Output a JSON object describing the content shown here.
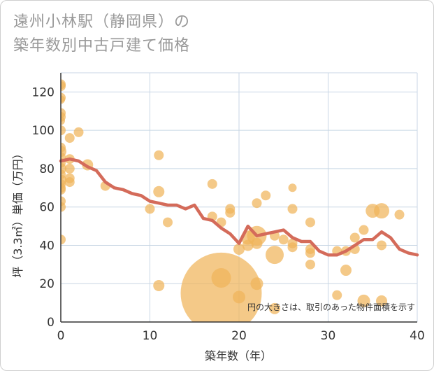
{
  "title_line1": "遠州小林駅（静岡県）の",
  "title_line2": "築年数別中古戸建て価格",
  "colors": {
    "bubble": "#f0b45a",
    "line": "#d46b5a",
    "grid": "#c8d6e4",
    "axis": "#333333"
  },
  "chart_data": {
    "type": "scatter",
    "xlabel": "築年数（年）",
    "ylabel": "坪（3.3㎡）単価（万円）",
    "xlim": [
      0,
      40
    ],
    "ylim": [
      0,
      130
    ],
    "xticks": [
      0,
      10,
      20,
      30,
      40
    ],
    "yticks": [
      0,
      20,
      40,
      60,
      80,
      100,
      120
    ],
    "grid": true,
    "note": "円の大きさは、取引のあった物件面積を示す",
    "bubbles": [
      {
        "x": 0,
        "y": 124,
        "s": 7
      },
      {
        "x": 0,
        "y": 123,
        "s": 7
      },
      {
        "x": 0,
        "y": 117,
        "s": 7
      },
      {
        "x": 0,
        "y": 116,
        "s": 6
      },
      {
        "x": 0,
        "y": 109,
        "s": 7
      },
      {
        "x": 0,
        "y": 107,
        "s": 7
      },
      {
        "x": 0,
        "y": 105,
        "s": 6
      },
      {
        "x": 0,
        "y": 100,
        "s": 7
      },
      {
        "x": 0,
        "y": 91,
        "s": 7
      },
      {
        "x": 0,
        "y": 89,
        "s": 8
      },
      {
        "x": 0,
        "y": 86,
        "s": 7
      },
      {
        "x": 0,
        "y": 83,
        "s": 7
      },
      {
        "x": 0,
        "y": 80,
        "s": 8
      },
      {
        "x": 0,
        "y": 77,
        "s": 7
      },
      {
        "x": 0,
        "y": 74,
        "s": 8
      },
      {
        "x": 0,
        "y": 72,
        "s": 7
      },
      {
        "x": 0,
        "y": 70,
        "s": 7
      },
      {
        "x": 0,
        "y": 69,
        "s": 7
      },
      {
        "x": 0,
        "y": 63,
        "s": 7
      },
      {
        "x": 0,
        "y": 60,
        "s": 7
      },
      {
        "x": 0,
        "y": 43,
        "s": 7
      },
      {
        "x": 1,
        "y": 96,
        "s": 7
      },
      {
        "x": 1,
        "y": 85,
        "s": 7
      },
      {
        "x": 1,
        "y": 80,
        "s": 7
      },
      {
        "x": 1,
        "y": 75,
        "s": 7
      },
      {
        "x": 1,
        "y": 73,
        "s": 7
      },
      {
        "x": 2,
        "y": 99,
        "s": 7
      },
      {
        "x": 3,
        "y": 82,
        "s": 8
      },
      {
        "x": 5,
        "y": 71,
        "s": 7
      },
      {
        "x": 10,
        "y": 59,
        "s": 7
      },
      {
        "x": 11,
        "y": 87,
        "s": 7
      },
      {
        "x": 11,
        "y": 68,
        "s": 8
      },
      {
        "x": 11,
        "y": 19,
        "s": 8
      },
      {
        "x": 12,
        "y": 52,
        "s": 7
      },
      {
        "x": 17,
        "y": 72,
        "s": 7
      },
      {
        "x": 17,
        "y": 55,
        "s": 7
      },
      {
        "x": 18,
        "y": 52,
        "s": 7
      },
      {
        "x": 18,
        "y": 15,
        "s": 58
      },
      {
        "x": 18,
        "y": 23,
        "s": 14
      },
      {
        "x": 19,
        "y": 59,
        "s": 7
      },
      {
        "x": 19,
        "y": 57,
        "s": 7
      },
      {
        "x": 20,
        "y": 38,
        "s": 8
      },
      {
        "x": 20,
        "y": 13,
        "s": 9
      },
      {
        "x": 21,
        "y": 44,
        "s": 10
      },
      {
        "x": 21,
        "y": 40,
        "s": 8
      },
      {
        "x": 22,
        "y": 62,
        "s": 7
      },
      {
        "x": 22,
        "y": 45,
        "s": 14
      },
      {
        "x": 22,
        "y": 41,
        "s": 8
      },
      {
        "x": 22,
        "y": 20,
        "s": 9
      },
      {
        "x": 23,
        "y": 66,
        "s": 7
      },
      {
        "x": 24,
        "y": 45,
        "s": 7
      },
      {
        "x": 24,
        "y": 35,
        "s": 13
      },
      {
        "x": 24,
        "y": 7,
        "s": 8
      },
      {
        "x": 25,
        "y": 43,
        "s": 7
      },
      {
        "x": 26,
        "y": 70,
        "s": 6
      },
      {
        "x": 26,
        "y": 59,
        "s": 7
      },
      {
        "x": 26,
        "y": 41,
        "s": 7
      },
      {
        "x": 26,
        "y": 39,
        "s": 7
      },
      {
        "x": 28,
        "y": 52,
        "s": 7
      },
      {
        "x": 28,
        "y": 38,
        "s": 7
      },
      {
        "x": 28,
        "y": 36,
        "s": 7
      },
      {
        "x": 28,
        "y": 30,
        "s": 7
      },
      {
        "x": 31,
        "y": 37,
        "s": 7
      },
      {
        "x": 31,
        "y": 14,
        "s": 7
      },
      {
        "x": 32,
        "y": 37,
        "s": 7
      },
      {
        "x": 32,
        "y": 27,
        "s": 8
      },
      {
        "x": 33,
        "y": 44,
        "s": 7
      },
      {
        "x": 33,
        "y": 38,
        "s": 7
      },
      {
        "x": 34,
        "y": 48,
        "s": 7
      },
      {
        "x": 34,
        "y": 11,
        "s": 9
      },
      {
        "x": 35,
        "y": 58,
        "s": 10
      },
      {
        "x": 36,
        "y": 58,
        "s": 11
      },
      {
        "x": 36,
        "y": 40,
        "s": 7
      },
      {
        "x": 36,
        "y": 11,
        "s": 8
      },
      {
        "x": 38,
        "y": 56,
        "s": 7
      }
    ],
    "trend": {
      "x": [
        0,
        1,
        2,
        3,
        4,
        5,
        6,
        7,
        8,
        9,
        10,
        11,
        12,
        13,
        14,
        15,
        16,
        17,
        18,
        19,
        20,
        21,
        22,
        23,
        24,
        25,
        26,
        27,
        28,
        29,
        30,
        31,
        32,
        33,
        34,
        35,
        36,
        37,
        38,
        39,
        40
      ],
      "y": [
        84,
        85,
        84,
        81,
        79,
        73,
        70,
        69,
        67,
        66,
        63,
        62,
        61,
        61,
        59,
        61,
        54,
        53,
        49,
        46,
        41,
        50,
        45,
        46,
        47,
        48,
        44,
        42,
        42,
        37,
        35,
        35,
        37,
        40,
        43,
        43,
        47,
        44,
        38,
        36,
        35
      ]
    }
  }
}
